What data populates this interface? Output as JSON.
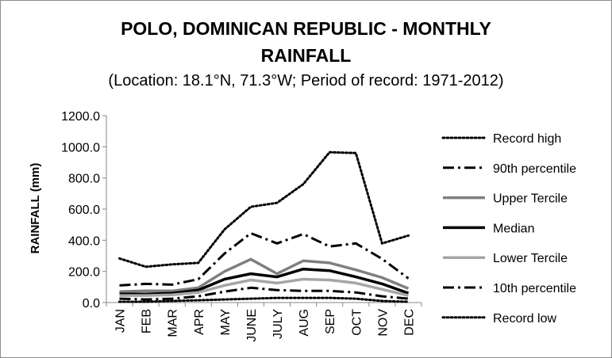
{
  "chart_data": {
    "type": "line",
    "title_line1": "POLO, DOMINICAN REPUBLIC - MONTHLY",
    "title_line2": "RAINFALL",
    "subtitle": "(Location: 18.1°N, 71.3°W; Period of record: 1971-2012)",
    "ylabel": "RAINFALL (mm)",
    "xlabel": "",
    "ylim": [
      0,
      1200
    ],
    "yticks": [
      "0.0",
      "200.0",
      "400.0",
      "600.0",
      "800.0",
      "1000.0",
      "1200.0"
    ],
    "grid": false,
    "legend_position": "right",
    "categories": [
      "JAN",
      "FEB",
      "MAR",
      "APR",
      "MAY",
      "JUNE",
      "JULY",
      "AUG",
      "SEP",
      "OCT",
      "NOV",
      "DEC"
    ],
    "series": [
      {
        "name": "Record high",
        "style": "dotted",
        "color": "#000000",
        "values": [
          283,
          230,
          245,
          255,
          470,
          615,
          640,
          760,
          965,
          960,
          380,
          430
        ]
      },
      {
        "name": "90th percentile",
        "style": "dashdot",
        "color": "#000000",
        "values": [
          110,
          120,
          115,
          150,
          315,
          445,
          380,
          440,
          360,
          380,
          280,
          155
        ]
      },
      {
        "name": "Upper Tercile",
        "style": "solid",
        "color": "#7f7f7f",
        "values": [
          70,
          75,
          75,
          95,
          200,
          278,
          185,
          268,
          255,
          210,
          160,
          90
        ]
      },
      {
        "name": "Median",
        "style": "solid",
        "color": "#000000",
        "values": [
          55,
          55,
          60,
          80,
          150,
          185,
          165,
          215,
          205,
          165,
          120,
          60
        ]
      },
      {
        "name": "Lower Tercile",
        "style": "solid",
        "color": "#a6a6a6",
        "values": [
          45,
          45,
          50,
          65,
          110,
          145,
          125,
          150,
          145,
          125,
          85,
          45
        ]
      },
      {
        "name": "10th percentile",
        "style": "dashdot",
        "color": "#000000",
        "values": [
          25,
          20,
          25,
          40,
          70,
          95,
          80,
          75,
          75,
          65,
          40,
          25
        ]
      },
      {
        "name": "Record low",
        "style": "dotted",
        "color": "#000000",
        "values": [
          5,
          5,
          10,
          15,
          20,
          25,
          30,
          30,
          30,
          25,
          10,
          5
        ]
      }
    ]
  }
}
